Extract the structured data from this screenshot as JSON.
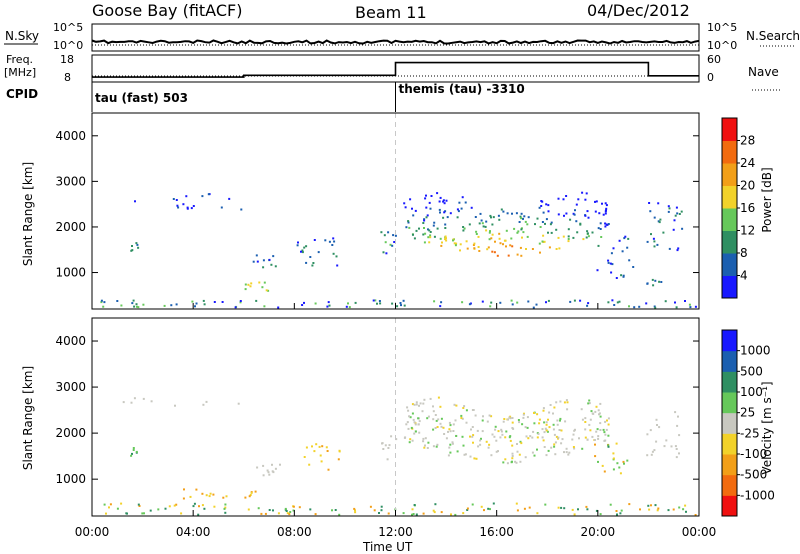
{
  "header": {
    "title": "Goose Bay (fitACF)",
    "beam": "Beam 11",
    "date": "04/Dec/2012"
  },
  "noise_panel": {
    "left_label": "N.Sky",
    "left_ticks": [
      "10^5",
      "10^0"
    ],
    "right_label": "N.Search",
    "right_ticks": [
      "10^5",
      "10^0"
    ]
  },
  "freq_panel": {
    "left_label_line1": "Freq.",
    "left_label_line2": "[MHz]",
    "left_ticks": [
      "18",
      "8"
    ],
    "right_label": "Nave",
    "right_ticks": [
      "60",
      "0"
    ]
  },
  "cpid_panel": {
    "label": "CPID",
    "segments": [
      {
        "start_hour": 0,
        "text": "tau (fast) 503"
      },
      {
        "start_hour": 12,
        "text": "themis (tau) -3310"
      }
    ]
  },
  "power_panel": {
    "ylabel": "Slant Range [km]",
    "yticks": [
      "1000",
      "2000",
      "3000",
      "4000"
    ],
    "colorbar_label": "Power [dB]",
    "colorbar_ticks": [
      "4",
      "8",
      "12",
      "16",
      "20",
      "24",
      "28"
    ],
    "colors": [
      "#1818ff",
      "#1b5fb0",
      "#2f8f62",
      "#66c85a",
      "#f2d22a",
      "#f29f18",
      "#f26b0f",
      "#f01010"
    ]
  },
  "velocity_panel": {
    "ylabel": "Slant Range [km]",
    "yticks": [
      "1000",
      "2000",
      "3000",
      "4000"
    ],
    "colorbar_label": "Velocity [m s⁻¹]",
    "colorbar_ticks": [
      "1000",
      "500",
      "100",
      "25",
      "-25",
      "-100",
      "-500",
      "-1000"
    ],
    "colors": [
      "#1818ff",
      "#1b5fb0",
      "#2f8f62",
      "#66c85a",
      "#c8c8c0",
      "#f2d22a",
      "#f29f18",
      "#f26b0f",
      "#f01010"
    ]
  },
  "xaxis": {
    "ticks": [
      "00:00",
      "04:00",
      "08:00",
      "12:00",
      "16:00",
      "20:00",
      "00:00"
    ],
    "label": "Time UT"
  },
  "chart_data": {
    "type": "heatmap",
    "title": "Goose Bay (fitACF)",
    "subtitle": "Beam 11 — 04/Dec/2012",
    "xlabel": "Time UT",
    "ylabel": "Slant Range [km]",
    "xlim_hours": [
      0,
      24
    ],
    "ylim_km": [
      200,
      4500
    ],
    "grid": false,
    "frequency_mhz": [
      {
        "start_hour": 0,
        "end_hour": 6,
        "value": 9.8
      },
      {
        "start_hour": 6,
        "end_hour": 12,
        "value": 10.5
      },
      {
        "start_hour": 12,
        "end_hour": 22,
        "value": 15.2
      },
      {
        "start_hour": 22,
        "end_hour": 24,
        "value": 10.3
      }
    ],
    "scatter_regions": [
      {
        "panel": "power",
        "t": [
          0,
          24
        ],
        "r": [
          200,
          420
        ],
        "density": 0.45,
        "levels": [
          0,
          1,
          2,
          3
        ]
      },
      {
        "panel": "power",
        "t": [
          0.5,
          7
        ],
        "r": [
          2350,
          2650
        ],
        "density": 0.08,
        "levels": [
          0,
          1
        ]
      },
      {
        "panel": "power",
        "t": [
          1.5,
          1.8
        ],
        "r": [
          1450,
          1700
        ],
        "density": 0.5,
        "levels": [
          1,
          2
        ]
      },
      {
        "panel": "power",
        "t": [
          3,
          5
        ],
        "r": [
          2550,
          2800
        ],
        "density": 0.1,
        "levels": [
          0,
          1
        ]
      },
      {
        "panel": "power",
        "t": [
          5.8,
          7
        ],
        "r": [
          620,
          820
        ],
        "density": 0.6,
        "levels": [
          3,
          4
        ]
      },
      {
        "panel": "power",
        "t": [
          6.3,
          7.3
        ],
        "r": [
          1050,
          1400
        ],
        "density": 0.4,
        "levels": [
          0,
          1,
          2
        ]
      },
      {
        "panel": "power",
        "t": [
          8,
          9.7
        ],
        "r": [
          1150,
          1900
        ],
        "density": 0.3,
        "levels": [
          0,
          1,
          2
        ]
      },
      {
        "panel": "power",
        "t": [
          11.4,
          12
        ],
        "r": [
          1400,
          2000
        ],
        "density": 0.45,
        "levels": [
          0,
          1,
          2,
          3
        ]
      },
      {
        "panel": "power",
        "t": [
          12.3,
          20.4
        ],
        "r": [
          1300,
          2800
        ],
        "density": 0.45,
        "levels": [
          0,
          1,
          2,
          3,
          4,
          5,
          6,
          7
        ],
        "arc": true
      },
      {
        "panel": "power",
        "t": [
          19.9,
          21.4
        ],
        "r": [
          900,
          1900
        ],
        "density": 0.25,
        "levels": [
          0,
          1,
          2
        ]
      },
      {
        "panel": "power",
        "t": [
          21.9,
          23.3
        ],
        "r": [
          1500,
          2600
        ],
        "density": 0.35,
        "levels": [
          0,
          1,
          2
        ]
      },
      {
        "panel": "power",
        "t": [
          21.9,
          22.5
        ],
        "r": [
          700,
          900
        ],
        "density": 0.5,
        "levels": [
          1,
          2
        ]
      },
      {
        "panel": "velocity",
        "t": [
          0,
          24
        ],
        "r": [
          200,
          500
        ],
        "density": 0.4,
        "levels": [
          2,
          3,
          5,
          6
        ]
      },
      {
        "panel": "velocity",
        "t": [
          0.5,
          6
        ],
        "r": [
          2550,
          2800
        ],
        "density": 0.08,
        "levels": [
          4
        ]
      },
      {
        "panel": "velocity",
        "t": [
          1.5,
          1.8
        ],
        "r": [
          1450,
          1700
        ],
        "density": 0.5,
        "levels": [
          2,
          3
        ]
      },
      {
        "panel": "velocity",
        "t": [
          3.5,
          6.5
        ],
        "r": [
          600,
          800
        ],
        "density": 0.5,
        "levels": [
          5,
          6
        ]
      },
      {
        "panel": "velocity",
        "t": [
          6.3,
          7.5
        ],
        "r": [
          1100,
          1350
        ],
        "density": 0.5,
        "levels": [
          4
        ]
      },
      {
        "panel": "velocity",
        "t": [
          8.3,
          9.8
        ],
        "r": [
          1200,
          1800
        ],
        "density": 0.3,
        "levels": [
          5,
          6
        ]
      },
      {
        "panel": "velocity",
        "t": [
          11.4,
          12
        ],
        "r": [
          1400,
          2000
        ],
        "density": 0.3,
        "levels": [
          4,
          5
        ]
      },
      {
        "panel": "velocity",
        "t": [
          12.3,
          20.4
        ],
        "r": [
          1300,
          2800
        ],
        "density": 0.55,
        "levels": [
          4,
          4,
          4,
          4,
          3,
          5
        ],
        "arc": true
      },
      {
        "panel": "velocity",
        "t": [
          19.8,
          21.2
        ],
        "r": [
          1100,
          1800
        ],
        "density": 0.35,
        "levels": [
          2,
          3,
          5,
          6
        ]
      },
      {
        "panel": "velocity",
        "t": [
          21.9,
          23.3
        ],
        "r": [
          1500,
          2600
        ],
        "density": 0.25,
        "levels": [
          4
        ]
      }
    ]
  }
}
